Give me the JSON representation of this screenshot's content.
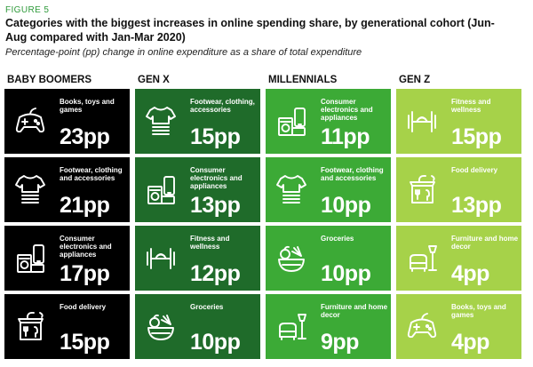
{
  "figure_label": "FIGURE 5",
  "title": "Categories with the biggest increases in online spending share, by generational cohort (Jun-Aug compared with Jan-Mar 2020)",
  "subtitle": "Percentage-point (pp) change in online expenditure as a share of total expenditure",
  "colors": {
    "baby_boomers": "#000000",
    "gen_x": "#1f6b2a",
    "millennials": "#3caa36",
    "gen_z": "#a6d249"
  },
  "chart_data": {
    "type": "table",
    "unit": "pp",
    "cohorts": [
      {
        "name": "BABY BOOMERS",
        "categories": [
          {
            "label": "Books, toys and games",
            "value": 23,
            "display": "23pp",
            "icon": "gamepad-icon"
          },
          {
            "label": "Footwear, clothing and accessories",
            "value": 21,
            "display": "21pp",
            "icon": "tshirt-icon"
          },
          {
            "label": "Consumer electronics and appliances",
            "value": 17,
            "display": "17pp",
            "icon": "electronics-icon"
          },
          {
            "label": "Food delivery",
            "value": 15,
            "display": "15pp",
            "icon": "food-delivery-icon"
          }
        ]
      },
      {
        "name": "GEN X",
        "categories": [
          {
            "label": "Footwear, clothing, accessories",
            "value": 15,
            "display": "15pp",
            "icon": "tshirt-icon"
          },
          {
            "label": "Consumer electronics and appliances",
            "value": 13,
            "display": "13pp",
            "icon": "electronics-icon"
          },
          {
            "label": "Fitness and wellness",
            "value": 12,
            "display": "12pp",
            "icon": "dumbbell-icon"
          },
          {
            "label": "Groceries",
            "value": 10,
            "display": "10pp",
            "icon": "groceries-icon"
          }
        ]
      },
      {
        "name": "MILLENNIALS",
        "categories": [
          {
            "label": "Consumer electronics and appliances",
            "value": 11,
            "display": "11pp",
            "icon": "electronics-icon"
          },
          {
            "label": "Footwear, clothing and accessories",
            "value": 10,
            "display": "10pp",
            "icon": "tshirt-icon"
          },
          {
            "label": "Groceries",
            "value": 10,
            "display": "10pp",
            "icon": "groceries-icon"
          },
          {
            "label": "Furniture and home decor",
            "value": 9,
            "display": "9pp",
            "icon": "furniture-icon"
          }
        ]
      },
      {
        "name": "GEN Z",
        "categories": [
          {
            "label": "Fitness and wellness",
            "value": 15,
            "display": "15pp",
            "icon": "dumbbell-icon"
          },
          {
            "label": "Food delivery",
            "value": 13,
            "display": "13pp",
            "icon": "food-delivery-icon"
          },
          {
            "label": "Furniture and home decor",
            "value": 4,
            "display": "4pp",
            "icon": "furniture-icon"
          },
          {
            "label": "Books, toys and games",
            "value": 4,
            "display": "4pp",
            "icon": "gamepad-icon"
          }
        ]
      }
    ]
  }
}
